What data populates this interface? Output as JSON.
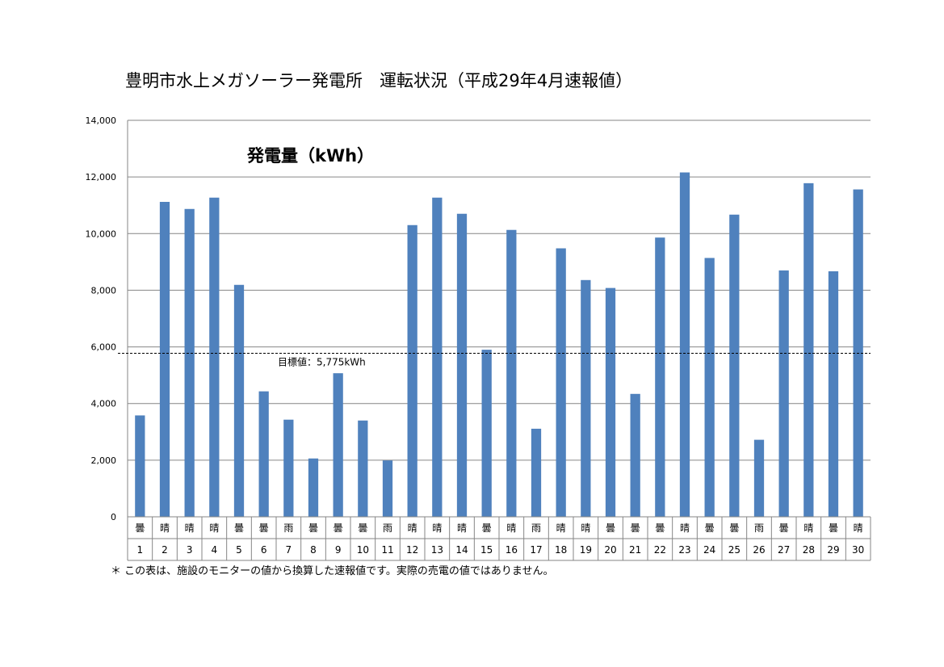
{
  "title": "豊明市水上メガソーラー発電所　運転状況（平成29年4月速報値）",
  "footnote": "＊ この表は、施設のモニターの値から換算した速報値です。実際の売電の値ではありません。",
  "colors": {
    "bar": "#4f81bd",
    "grid": "#868686",
    "target_line": "#000000"
  },
  "chart_data": {
    "type": "bar",
    "title": "発電量（kWh）",
    "ylim": [
      0,
      14000
    ],
    "ytick_labels": [
      "0",
      "2,000",
      "4,000",
      "6,000",
      "8,000",
      "10,000",
      "12,000",
      "14,000"
    ],
    "categories": [
      "1",
      "2",
      "3",
      "4",
      "5",
      "6",
      "7",
      "8",
      "9",
      "10",
      "11",
      "12",
      "13",
      "14",
      "15",
      "16",
      "17",
      "18",
      "19",
      "20",
      "21",
      "22",
      "23",
      "24",
      "25",
      "26",
      "27",
      "28",
      "29",
      "30"
    ],
    "weather": [
      "曇",
      "晴",
      "晴",
      "晴",
      "曇",
      "曇",
      "雨",
      "曇",
      "曇",
      "曇",
      "雨",
      "晴",
      "晴",
      "晴",
      "曇",
      "晴",
      "雨",
      "晴",
      "晴",
      "曇",
      "曇",
      "曇",
      "晴",
      "曇",
      "曇",
      "雨",
      "曇",
      "晴",
      "曇",
      "晴"
    ],
    "values": [
      3580,
      11120,
      10870,
      11270,
      8190,
      4430,
      3430,
      2060,
      5070,
      3400,
      1990,
      10300,
      11270,
      10700,
      5900,
      10130,
      3110,
      9480,
      8360,
      8080,
      4340,
      9860,
      12160,
      9140,
      10670,
      2720,
      8700,
      11780,
      8670,
      11560
    ],
    "target": {
      "value": 5775,
      "label": "目標値：5,775kWh"
    },
    "grid": true,
    "legend": "none"
  }
}
